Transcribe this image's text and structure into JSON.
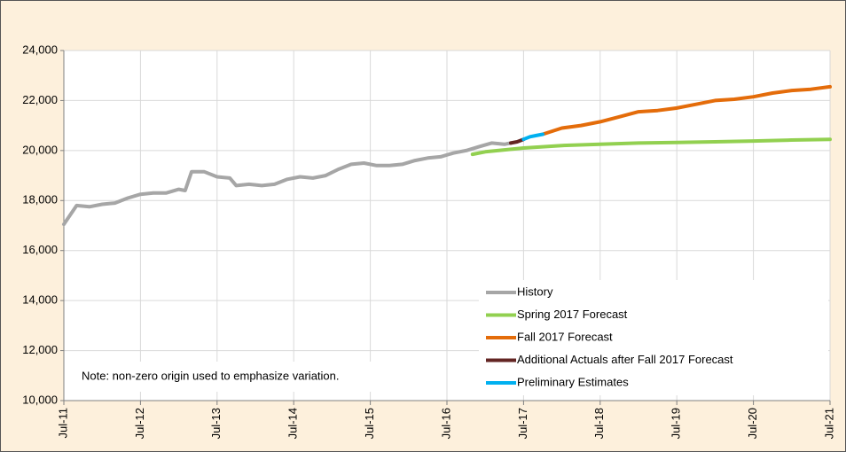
{
  "chart_data": {
    "type": "line",
    "note": "Note: non-zero origin used to emphasize variation.",
    "xlim": [
      "2011-07",
      "2021-07"
    ],
    "xticks": [
      {
        "value": "2011-07",
        "label": "Jul-11"
      },
      {
        "value": "2012-07",
        "label": "Jul-12"
      },
      {
        "value": "2013-07",
        "label": "Jul-13"
      },
      {
        "value": "2014-07",
        "label": "Jul-14"
      },
      {
        "value": "2015-07",
        "label": "Jul-15"
      },
      {
        "value": "2016-07",
        "label": "Jul-16"
      },
      {
        "value": "2017-07",
        "label": "Jul-17"
      },
      {
        "value": "2018-07",
        "label": "Jul-18"
      },
      {
        "value": "2019-07",
        "label": "Jul-19"
      },
      {
        "value": "2020-07",
        "label": "Jul-20"
      },
      {
        "value": "2021-07",
        "label": "Jul-21"
      }
    ],
    "ylim": [
      10000,
      24000
    ],
    "yticks": [
      {
        "value": 10000,
        "label": "10,000"
      },
      {
        "value": 12000,
        "label": "12,000"
      },
      {
        "value": 14000,
        "label": "14,000"
      },
      {
        "value": 16000,
        "label": "16,000"
      },
      {
        "value": 18000,
        "label": "18,000"
      },
      {
        "value": 20000,
        "label": "20,000"
      },
      {
        "value": 22000,
        "label": "22,000"
      },
      {
        "value": 24000,
        "label": "24,000"
      }
    ],
    "grid": true,
    "legend": "lower right",
    "series": [
      {
        "name": "History",
        "color": "#a6a6a6",
        "x": [
          "2011-07",
          "2011-09",
          "2011-11",
          "2012-01",
          "2012-03",
          "2012-05",
          "2012-07",
          "2012-09",
          "2012-11",
          "2013-01",
          "2013-02",
          "2013-03",
          "2013-05",
          "2013-07",
          "2013-09",
          "2013-10",
          "2013-12",
          "2014-02",
          "2014-04",
          "2014-06",
          "2014-08",
          "2014-10",
          "2014-12",
          "2015-02",
          "2015-04",
          "2015-06",
          "2015-08",
          "2015-10",
          "2015-12",
          "2016-02",
          "2016-04",
          "2016-06",
          "2016-08",
          "2016-10",
          "2016-12",
          "2017-02",
          "2017-04",
          "2017-05"
        ],
        "values": [
          17050,
          17800,
          17750,
          17850,
          17900,
          18100,
          18250,
          18300,
          18300,
          18450,
          18400,
          19150,
          19150,
          18950,
          18900,
          18600,
          18650,
          18600,
          18650,
          18850,
          18950,
          18900,
          19000,
          19250,
          19450,
          19500,
          19400,
          19400,
          19450,
          19600,
          19700,
          19750,
          19900,
          20000,
          20150,
          20300,
          20250,
          20300
        ]
      },
      {
        "name": "Spring 2017 Forecast",
        "color": "#92d050",
        "x": [
          "2016-11",
          "2017-01",
          "2017-07",
          "2018-01",
          "2018-07",
          "2019-01",
          "2019-07",
          "2020-01",
          "2020-07",
          "2021-01",
          "2021-07"
        ],
        "values": [
          19850,
          19950,
          20100,
          20200,
          20250,
          20300,
          20320,
          20350,
          20380,
          20420,
          20450
        ]
      },
      {
        "name": "Fall 2017 Forecast",
        "color": "#e46c0a",
        "x": [
          "2017-10",
          "2018-01",
          "2018-04",
          "2018-07",
          "2018-10",
          "2019-01",
          "2019-04",
          "2019-07",
          "2019-10",
          "2020-01",
          "2020-04",
          "2020-07",
          "2020-10",
          "2021-01",
          "2021-04",
          "2021-07"
        ],
        "values": [
          20650,
          20900,
          21000,
          21150,
          21350,
          21550,
          21600,
          21700,
          21850,
          22000,
          22050,
          22150,
          22300,
          22400,
          22450,
          22550
        ]
      },
      {
        "name": "Additional Actuals after Fall 2017 Forecast",
        "color": "#632523",
        "x": [
          "2017-05",
          "2017-06",
          "2017-07"
        ],
        "values": [
          20300,
          20350,
          20450
        ]
      },
      {
        "name": "Preliminary Estimates",
        "color": "#00b0f0",
        "x": [
          "2017-07",
          "2017-08",
          "2017-09",
          "2017-10"
        ],
        "values": [
          20450,
          20550,
          20600,
          20650
        ]
      }
    ]
  }
}
